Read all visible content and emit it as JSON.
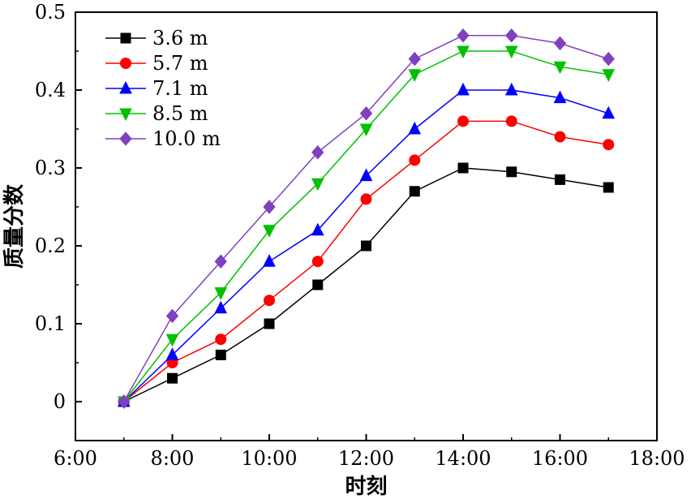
{
  "chart_data": {
    "type": "line",
    "xlabel": "时刻",
    "ylabel": "质量分数",
    "x_tick_labels": [
      "6:00",
      "8:00",
      "10:00",
      "12:00",
      "14:00",
      "16:00",
      "18:00"
    ],
    "y_tick_labels": [
      "0",
      "0.1",
      "0.2",
      "0.3",
      "0.4",
      "0.5"
    ],
    "xlim": [
      6,
      18
    ],
    "ylim": [
      -0.05,
      0.5
    ],
    "grid": false,
    "legend_position": "top-left",
    "x": [
      7,
      8,
      9,
      10,
      11,
      12,
      13,
      14,
      15,
      16,
      17
    ],
    "series": [
      {
        "name": "3.6 m",
        "marker": "square",
        "color": "#000000",
        "line_color": "#000000",
        "values": [
          0,
          0.03,
          0.06,
          0.1,
          0.15,
          0.2,
          0.27,
          0.3,
          0.295,
          0.285,
          0.275
        ]
      },
      {
        "name": "5.7 m",
        "marker": "circle",
        "color": "#ff0000",
        "line_color": "#ff0000",
        "values": [
          0,
          0.05,
          0.08,
          0.13,
          0.18,
          0.26,
          0.31,
          0.36,
          0.36,
          0.34,
          0.33
        ]
      },
      {
        "name": "7.1 m",
        "marker": "triangle-up",
        "color": "#0000ff",
        "line_color": "#0000ff",
        "values": [
          0,
          0.06,
          0.12,
          0.18,
          0.22,
          0.29,
          0.35,
          0.4,
          0.4,
          0.39,
          0.37
        ]
      },
      {
        "name": "8.5 m",
        "marker": "triangle-down",
        "color": "#00c000",
        "line_color": "#00c000",
        "values": [
          0,
          0.08,
          0.14,
          0.22,
          0.28,
          0.35,
          0.42,
          0.45,
          0.45,
          0.43,
          0.42
        ]
      },
      {
        "name": "10.0 m",
        "marker": "diamond",
        "color": "#8040c0",
        "line_color": "#8040c0",
        "values": [
          0,
          0.11,
          0.18,
          0.25,
          0.32,
          0.37,
          0.44,
          0.47,
          0.47,
          0.46,
          0.44
        ]
      }
    ]
  }
}
